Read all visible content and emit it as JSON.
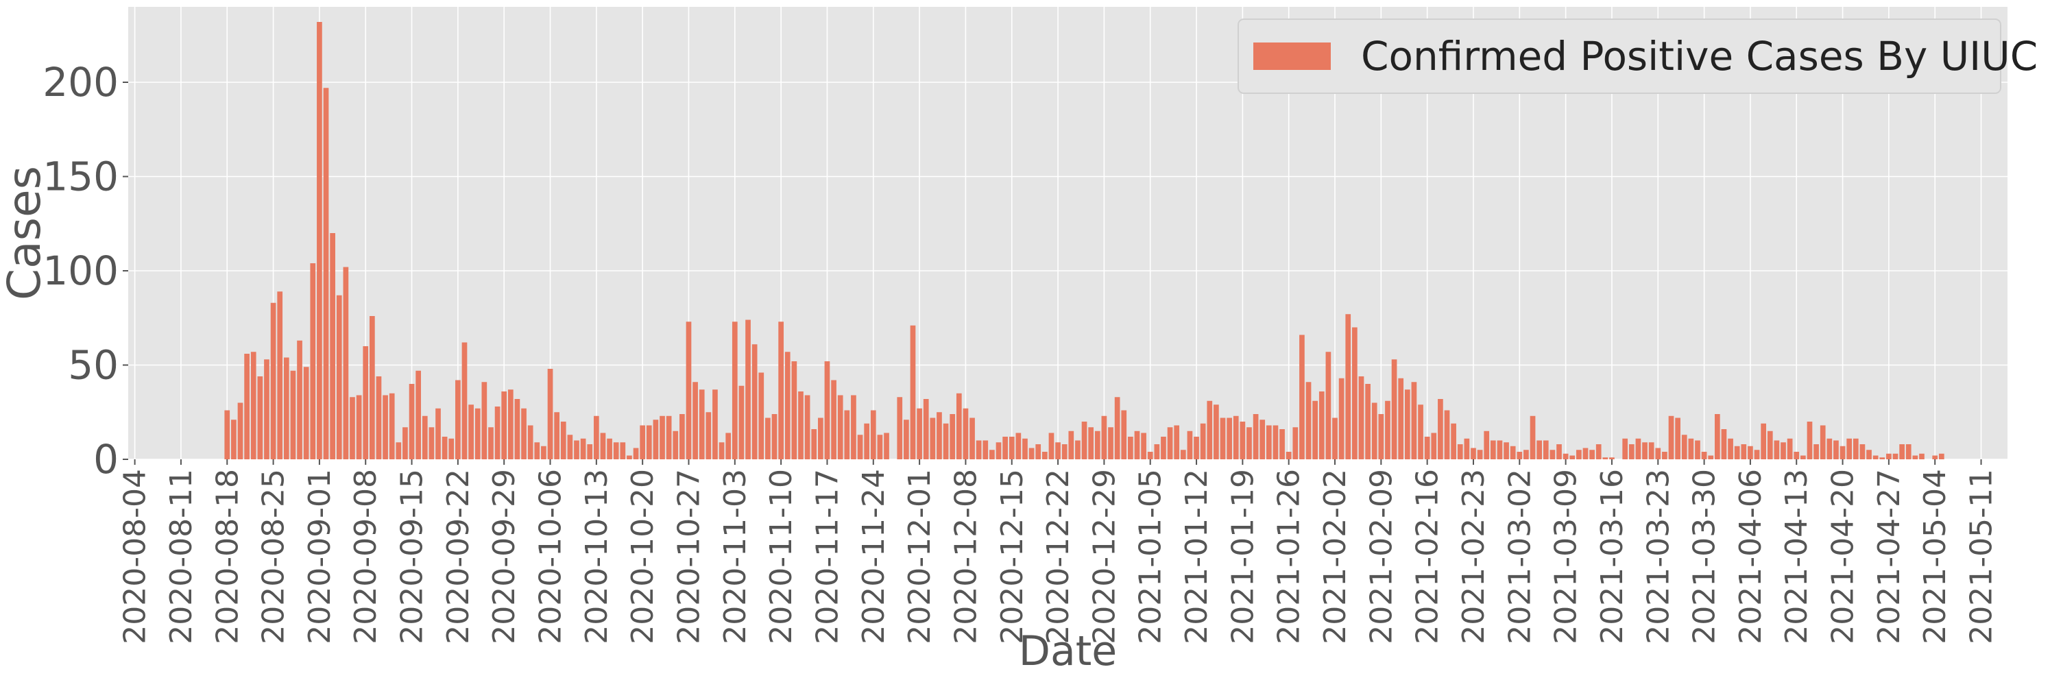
{
  "chart_data": {
    "type": "bar",
    "xlabel": "Date",
    "ylabel": "Cases",
    "series": [
      {
        "name": "Confirmed Positive Cases By UIUC",
        "color": "#E8795F",
        "start_date": "2020-08-18",
        "values": [
          26,
          21,
          30,
          56,
          57,
          44,
          53,
          83,
          89,
          54,
          47,
          63,
          49,
          104,
          232,
          197,
          120,
          87,
          102,
          33,
          34,
          60,
          76,
          44,
          34,
          35,
          9,
          17,
          40,
          47,
          23,
          17,
          27,
          12,
          11,
          42,
          62,
          29,
          27,
          41,
          17,
          28,
          36,
          37,
          32,
          27,
          18,
          9,
          7,
          48,
          25,
          20,
          13,
          10,
          11,
          8,
          23,
          14,
          11,
          9,
          9,
          2,
          6,
          18,
          18,
          21,
          23,
          23,
          15,
          24,
          73,
          41,
          37,
          25,
          37,
          9,
          14,
          73,
          39,
          74,
          61,
          46,
          22,
          24,
          73,
          57,
          52,
          36,
          34,
          16,
          22,
          52,
          42,
          34,
          26,
          34,
          13,
          19,
          26,
          13,
          14,
          0,
          33,
          21,
          71,
          27,
          32,
          22,
          25,
          19,
          24,
          35,
          27,
          22,
          10,
          10,
          5,
          9,
          12,
          12,
          14,
          11,
          6,
          8,
          4,
          14,
          9,
          8,
          15,
          10,
          20,
          17,
          15,
          23,
          17,
          33,
          26,
          12,
          15,
          14,
          4,
          8,
          12,
          17,
          18,
          5,
          15,
          12,
          19,
          31,
          29,
          22,
          22,
          23,
          20,
          17,
          24,
          21,
          18,
          18,
          16,
          4,
          17,
          66,
          41,
          31,
          36,
          57,
          22,
          43,
          77,
          70,
          44,
          40,
          30,
          24,
          31,
          53,
          43,
          37,
          41,
          29,
          12,
          14,
          32,
          26,
          19,
          8,
          11,
          6,
          5,
          15,
          10,
          10,
          9,
          7,
          4,
          5,
          23,
          10,
          10,
          5,
          8,
          3,
          2,
          5,
          6,
          5,
          8,
          1,
          1,
          0,
          11,
          8,
          11,
          9,
          9,
          6,
          4,
          23,
          22,
          13,
          11,
          10,
          4,
          2,
          24,
          16,
          11,
          7,
          8,
          7,
          5,
          19,
          15,
          10,
          9,
          11,
          4,
          2,
          20,
          8,
          18,
          11,
          10,
          7,
          11,
          11,
          8,
          5,
          2,
          1,
          3,
          3,
          8,
          8,
          2,
          3,
          0,
          2,
          3,
          0,
          0,
          0,
          0,
          0,
          0,
          0,
          0,
          0
        ]
      }
    ],
    "ylim": [
      0,
      240
    ],
    "yticks": [
      0,
      50,
      100,
      150,
      200
    ],
    "xlim": [
      "2020-08-03",
      "2021-05-15"
    ],
    "xticks": [
      "2020-08-04",
      "2020-08-11",
      "2020-08-18",
      "2020-08-25",
      "2020-09-01",
      "2020-09-08",
      "2020-09-15",
      "2020-09-22",
      "2020-09-29",
      "2020-10-06",
      "2020-10-13",
      "2020-10-20",
      "2020-10-27",
      "2020-11-03",
      "2020-11-10",
      "2020-11-17",
      "2020-11-24",
      "2020-12-01",
      "2020-12-08",
      "2020-12-15",
      "2020-12-22",
      "2020-12-29",
      "2021-01-05",
      "2021-01-12",
      "2021-01-19",
      "2021-01-26",
      "2021-02-02",
      "2021-02-09",
      "2021-02-16",
      "2021-02-23",
      "2021-03-02",
      "2021-03-09",
      "2021-03-16",
      "2021-03-23",
      "2021-03-30",
      "2021-04-06",
      "2021-04-13",
      "2021-04-20",
      "2021-04-27",
      "2021-05-04",
      "2021-05-11"
    ],
    "grid": true,
    "legend_position": "top-right",
    "background_color": "#E5E5E5",
    "grid_color": "#FFFFFF"
  }
}
